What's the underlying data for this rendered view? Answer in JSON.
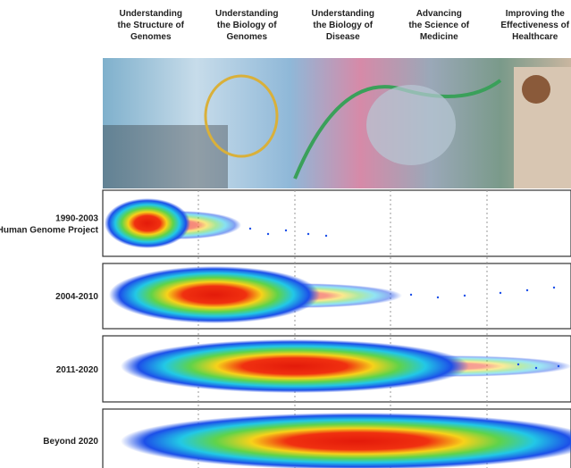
{
  "header": {
    "columns": [
      [
        "Understanding",
        "the Structure of",
        "Genomes"
      ],
      [
        "Understanding",
        "the Biology of",
        "Genomes"
      ],
      [
        "Understanding",
        "the Biology of",
        "Disease"
      ],
      [
        "Advancing",
        "the Science of",
        "Medicine"
      ],
      [
        "Improving the",
        "Effectiveness of",
        "Healthcare"
      ]
    ]
  },
  "rows": [
    [
      "1990-2003",
      "Human Genome Project"
    ],
    [
      "2004-2010"
    ],
    [
      "2011-2020"
    ],
    [
      "Beyond 2020"
    ]
  ]
}
